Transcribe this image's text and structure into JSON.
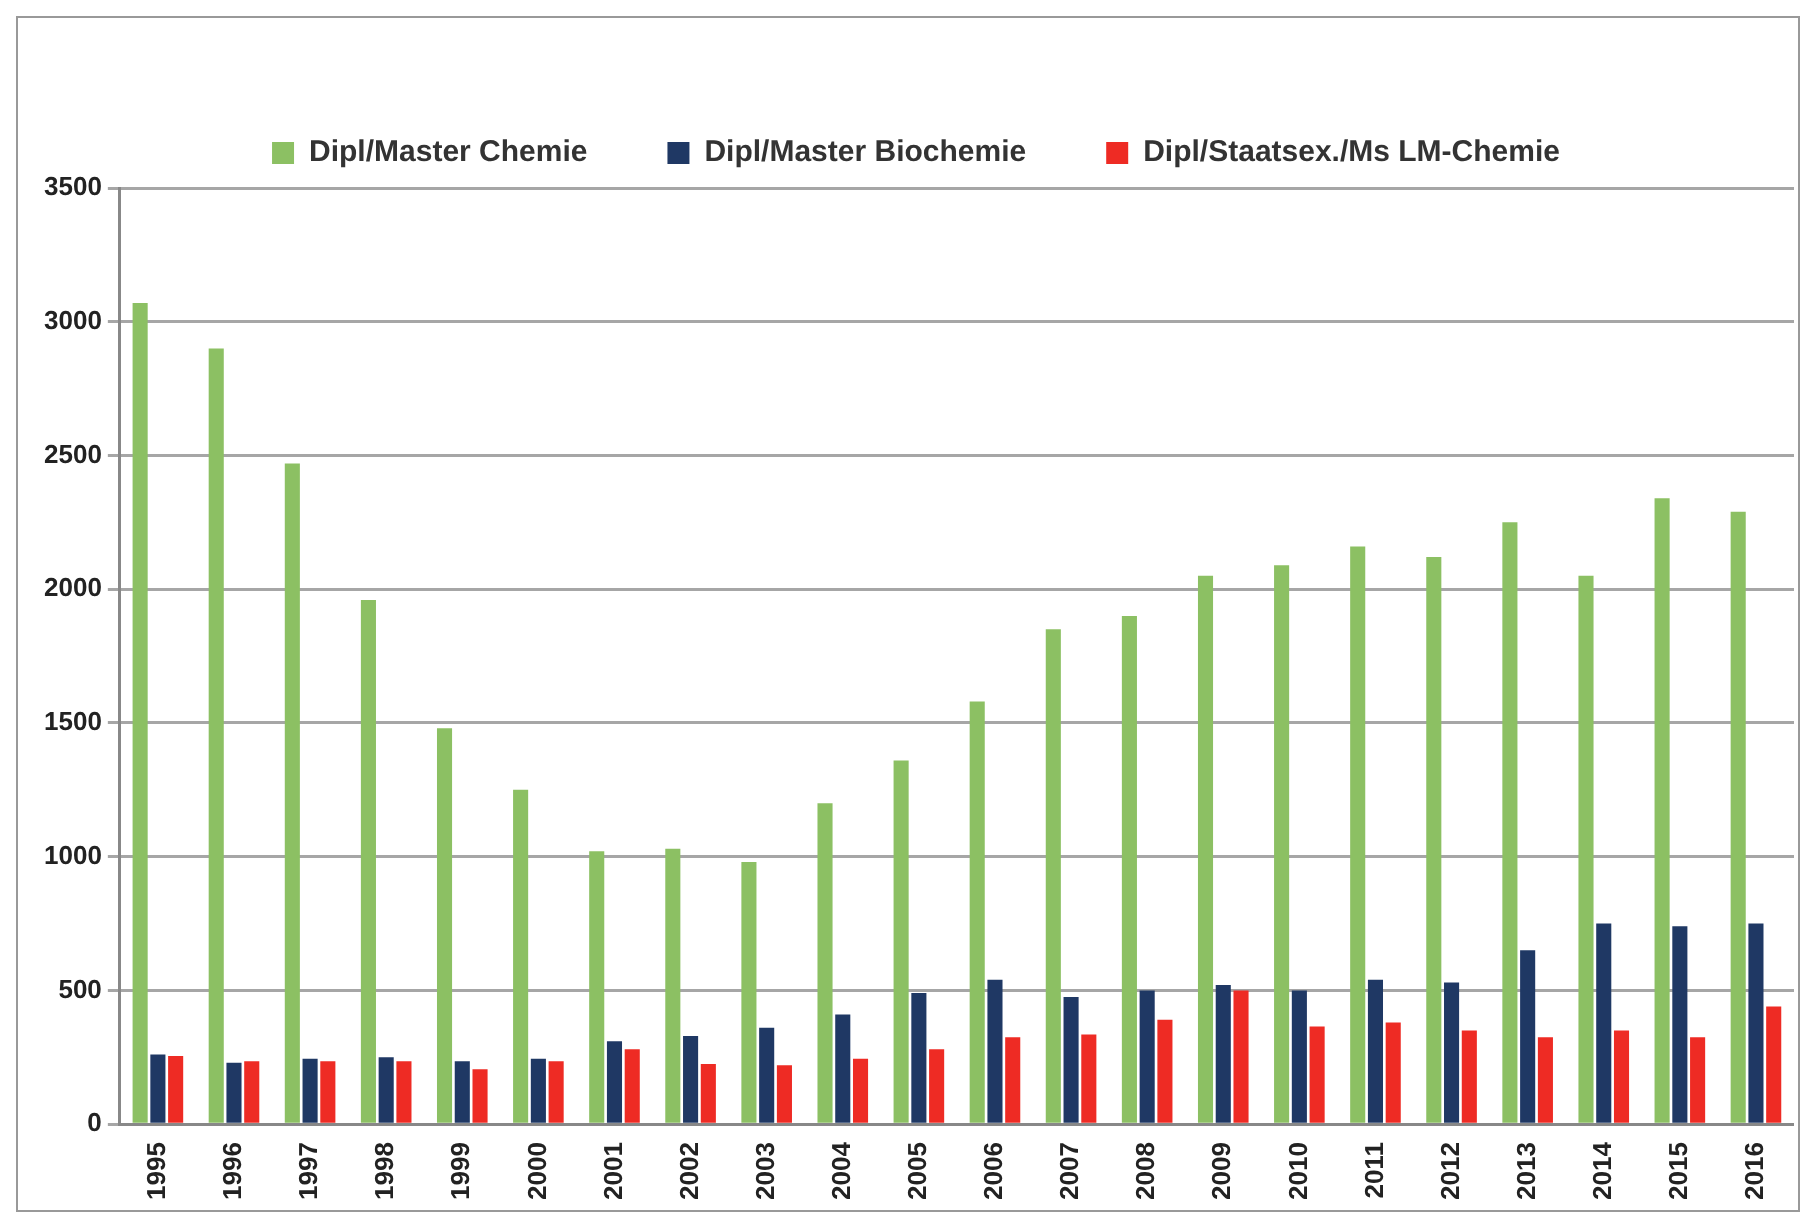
{
  "chart_data": {
    "type": "bar",
    "categories": [
      "1995",
      "1996",
      "1997",
      "1998",
      "1999",
      "2000",
      "2001",
      "2002",
      "2003",
      "2004",
      "2005",
      "2006",
      "2007",
      "2008",
      "2009",
      "2010",
      "2011",
      "2012",
      "2013",
      "2014",
      "2015",
      "2016"
    ],
    "series": [
      {
        "name": "Dipl/Master Chemie",
        "color": "#8cc063",
        "values": [
          3070,
          2900,
          2470,
          1960,
          1480,
          1250,
          1020,
          1030,
          980,
          1200,
          1360,
          1580,
          1850,
          1900,
          2050,
          2090,
          2160,
          2120,
          2250,
          2050,
          2340,
          2290
        ]
      },
      {
        "name": "Dipl/Master Biochemie",
        "color": "#1f3864",
        "values": [
          260,
          230,
          245,
          250,
          235,
          245,
          310,
          330,
          360,
          410,
          490,
          540,
          475,
          500,
          520,
          500,
          540,
          530,
          650,
          750,
          740,
          750
        ]
      },
      {
        "name": "Dipl/Staatsex./Ms LM-Chemie",
        "color": "#ee2b24",
        "values": [
          255,
          235,
          235,
          235,
          205,
          235,
          280,
          225,
          220,
          245,
          280,
          325,
          335,
          390,
          500,
          365,
          380,
          350,
          325,
          350,
          325,
          440
        ]
      }
    ],
    "ylim": [
      0,
      3500
    ],
    "yticks": [
      0,
      500,
      1000,
      1500,
      2000,
      2500,
      3000,
      3500
    ],
    "grid": "y",
    "legend": "top"
  }
}
